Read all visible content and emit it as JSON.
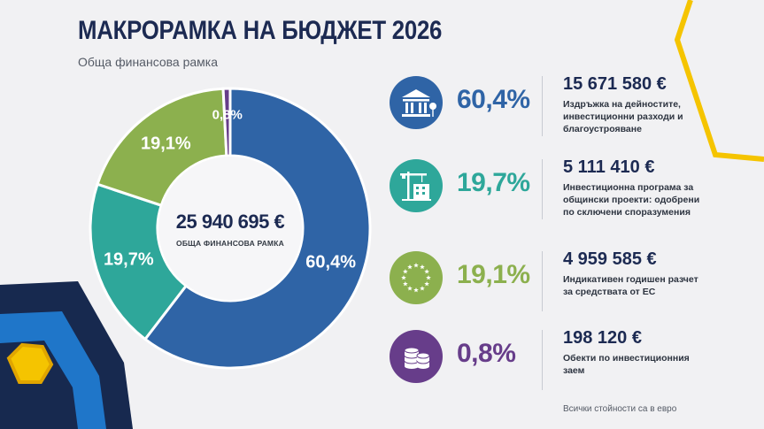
{
  "header": {
    "title": "МАКРОРАМКА НА БЮДЖЕТ 2026",
    "subtitle": "Обща финансова рамка"
  },
  "center": {
    "total": "25 940 695 €",
    "caption": "ОБЩА ФИНАНСОВА РАМКА"
  },
  "chart_data": {
    "type": "pie",
    "title": "",
    "categories": [
      "Издръжка на дейностите, инвестиционни разходи и благоустрояване",
      "Инвестиционна програма за общински проекти: одобрени по сключени споразумения",
      "Индикативен годишен разчет за средствата от ЕС",
      "Обекти по инвестиционния заем"
    ],
    "values": [
      60.4,
      19.7,
      19.1,
      0.8
    ],
    "labels": [
      "60,4%",
      "19,7%",
      "19,1%",
      "0,8%"
    ],
    "amounts": [
      "15 671 580 €",
      "5 111 410 €",
      "4 959 585 €",
      "198 120 €"
    ],
    "colors": [
      "#2f64a6",
      "#2ea79a",
      "#8cb04e",
      "#673d8a"
    ],
    "donut": true
  },
  "items": [
    {
      "pct": "60,4%",
      "amount": "15 671 580 €",
      "desc": "Издръжка на дейностите, инвестиционни разходи и благоустрояване",
      "color": "#2f64a6",
      "icon": "public-building-icon"
    },
    {
      "pct": "19,7%",
      "amount": "5 111 410 €",
      "desc": "Инвестиционна програма за общински проекти: одобрени по сключени споразумения",
      "color": "#2ea79a",
      "icon": "crane-building-icon"
    },
    {
      "pct": "19,1%",
      "amount": "4 959 585 €",
      "desc": "Индикативен годишен разчет за средствата от ЕС",
      "color": "#8cb04e",
      "icon": "eu-stars-icon"
    },
    {
      "pct": "0,8%",
      "amount": "198 120 €",
      "desc": "Обекти по инвестиционния заем",
      "color": "#673d8a",
      "icon": "coins-icon"
    }
  ],
  "footnote": "Всички стойности са в евро"
}
